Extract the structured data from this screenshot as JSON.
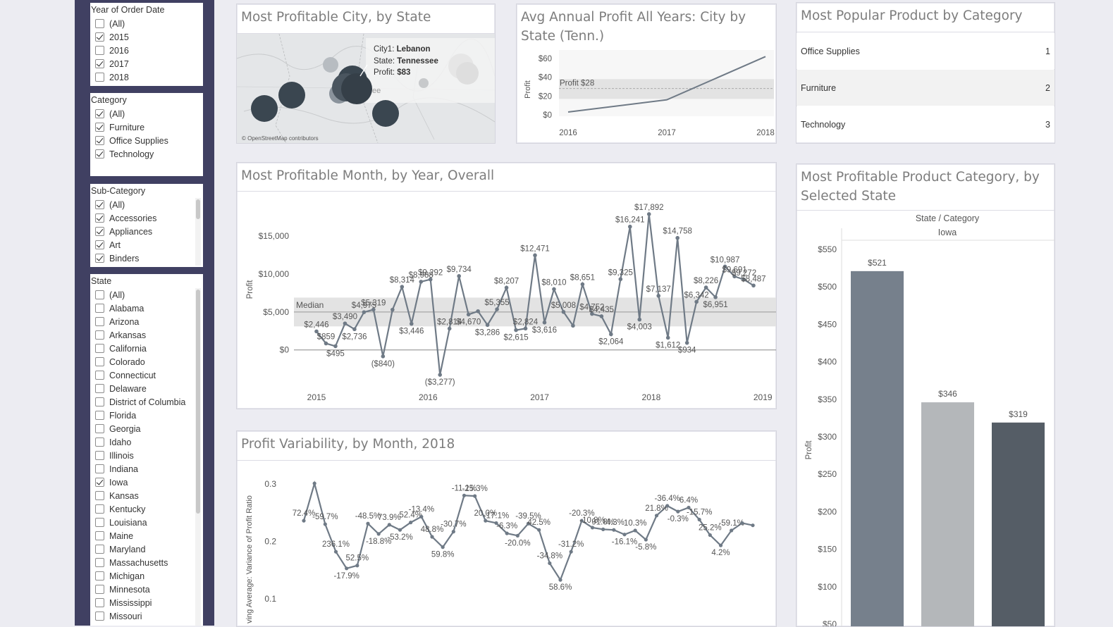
{
  "filters": {
    "year": {
      "title": "Year of Order Date",
      "options": [
        {
          "label": "(All)",
          "checked": false
        },
        {
          "label": "2015",
          "checked": true
        },
        {
          "label": "2016",
          "checked": false
        },
        {
          "label": "2017",
          "checked": true
        },
        {
          "label": "2018",
          "checked": false
        }
      ]
    },
    "category": {
      "title": "Category",
      "options": [
        {
          "label": "(All)",
          "checked": true
        },
        {
          "label": "Furniture",
          "checked": true
        },
        {
          "label": "Office Supplies",
          "checked": true
        },
        {
          "label": "Technology",
          "checked": true
        }
      ]
    },
    "subcategory": {
      "title": "Sub-Category",
      "options": [
        {
          "label": "(All)",
          "checked": true
        },
        {
          "label": "Accessories",
          "checked": true
        },
        {
          "label": "Appliances",
          "checked": true
        },
        {
          "label": "Art",
          "checked": true
        },
        {
          "label": "Binders",
          "checked": true
        }
      ]
    },
    "state": {
      "title": "State",
      "options": [
        {
          "label": "(All)",
          "checked": false
        },
        {
          "label": "Alabama",
          "checked": false
        },
        {
          "label": "Arizona",
          "checked": false
        },
        {
          "label": "Arkansas",
          "checked": false
        },
        {
          "label": "California",
          "checked": false
        },
        {
          "label": "Colorado",
          "checked": false
        },
        {
          "label": "Connecticut",
          "checked": false
        },
        {
          "label": "Delaware",
          "checked": false
        },
        {
          "label": "District of Columbia",
          "checked": false
        },
        {
          "label": "Florida",
          "checked": false
        },
        {
          "label": "Georgia",
          "checked": false
        },
        {
          "label": "Idaho",
          "checked": false
        },
        {
          "label": "Illinois",
          "checked": false
        },
        {
          "label": "Indiana",
          "checked": false
        },
        {
          "label": "Iowa",
          "checked": true
        },
        {
          "label": "Kansas",
          "checked": false
        },
        {
          "label": "Kentucky",
          "checked": false
        },
        {
          "label": "Louisiana",
          "checked": false
        },
        {
          "label": "Maine",
          "checked": false
        },
        {
          "label": "Maryland",
          "checked": false
        },
        {
          "label": "Massachusetts",
          "checked": false
        },
        {
          "label": "Michigan",
          "checked": false
        },
        {
          "label": "Minnesota",
          "checked": false
        },
        {
          "label": "Mississippi",
          "checked": false
        },
        {
          "label": "Missouri",
          "checked": false
        }
      ]
    }
  },
  "map_panel": {
    "title": "Most Profitable City, by State",
    "tooltip": {
      "city_label": "City1: ",
      "city": "Lebanon",
      "state_label": "State: ",
      "state": "Tennessee",
      "profit_label": "Profit: ",
      "profit": "$83"
    },
    "map_text": "ee",
    "attribution": "© OpenStreetMap contributors"
  },
  "avg_panel": {
    "title": "Avg Annual Profit All Years: City by State (Tenn.)"
  },
  "popular_panel": {
    "title": "Most Popular Product by Category",
    "rows": [
      {
        "name": "Office Supplies",
        "rank": "1"
      },
      {
        "name": "Furniture",
        "rank": "2"
      },
      {
        "name": "Technology",
        "rank": "3"
      }
    ]
  },
  "month_panel": {
    "title": "Most Profitable Month, by Year, Overall"
  },
  "variability_panel": {
    "title": "Profit Variability, by Month, 2018"
  },
  "category_panel": {
    "title": "Most Profitable Product Category, by Selected State"
  },
  "colors": {
    "line": "#6f7a86",
    "band": "#e3e3e3",
    "bar1": "#76808c",
    "bar2": "#b4b7ba",
    "bar3": "#555d66",
    "rail": "#404062"
  },
  "chart_data": [
    {
      "id": "avg",
      "type": "line",
      "x": [
        "2016",
        "2017",
        "2018"
      ],
      "values": [
        3,
        16,
        62
      ],
      "ylabel": "Profit",
      "yticks": [
        "$60",
        "$40",
        "$20",
        "$0"
      ],
      "ylim": [
        0,
        60
      ],
      "reference_band": [
        17,
        38
      ],
      "reference_line": {
        "label": "Profit $28",
        "value": 28
      }
    },
    {
      "id": "month",
      "type": "line",
      "ylabel": "Profit",
      "xticks": [
        "2015",
        "2016",
        "2017",
        "2018",
        "2019"
      ],
      "yticks": [
        "$15,000",
        "$10,000",
        "$5,000",
        "$0"
      ],
      "ylim": [
        -4200,
        19000
      ],
      "median_label": "Median",
      "median": 5000,
      "band": [
        3100,
        6900
      ],
      "values": [
        2446,
        859,
        495,
        3490,
        2736,
        4975,
        5319,
        -840,
        5300,
        8314,
        3446,
        8988,
        9292,
        -3277,
        2814,
        9734,
        4670,
        5100,
        3286,
        5355,
        8207,
        2615,
        2824,
        12471,
        3616,
        8010,
        5008,
        3200,
        8651,
        4752,
        4435,
        2064,
        9325,
        16241,
        4003,
        17892,
        7137,
        1612,
        14758,
        934,
        6342,
        8226,
        6951,
        10987,
        9691,
        9272,
        8487
      ],
      "labels": [
        "$2,446",
        "$859",
        "$495",
        "$3,490",
        "$2,736",
        "$4,975",
        "$5,319",
        "($840)",
        "",
        "$8,314",
        "$3,446",
        "$8,988",
        "$9,292",
        "($3,277)",
        "$2,814",
        "$9,734",
        "$4,670",
        "",
        "$3,286",
        "$5,355",
        "$8,207",
        "$2,615",
        "$2,824",
        "$12,471",
        "$3,616",
        "$8,010",
        "$5,008",
        "",
        "$8,651",
        "$4,752",
        "$4,435",
        "$2,064",
        "$9,325",
        "$16,241",
        "$4,003",
        "$17,892",
        "$7,137",
        "$1,612",
        "$14,758",
        "$934",
        "$6,342",
        "$8,226",
        "$6,951",
        "$10,987",
        "$9,691",
        "$9,272",
        "$8,487"
      ]
    },
    {
      "id": "variability",
      "type": "line",
      "ylabel": "ving Average: Variance of Profit Ratio",
      "yticks": [
        "0.3",
        "0.2",
        "0.1"
      ],
      "ylim": [
        0.08,
        0.325
      ],
      "values": [
        0.236,
        0.301,
        0.23,
        0.182,
        0.153,
        0.158,
        0.231,
        0.213,
        0.229,
        0.22,
        0.233,
        0.243,
        0.208,
        0.19,
        0.217,
        0.28,
        0.279,
        0.236,
        0.232,
        0.214,
        0.21,
        0.231,
        0.22,
        0.162,
        0.133,
        0.182,
        0.236,
        0.224,
        0.221,
        0.22,
        0.212,
        0.219,
        0.203,
        0.245,
        0.262,
        0.252,
        0.259,
        0.238,
        0.211,
        0.193,
        0.219,
        0.232,
        0.228
      ],
      "labels": [
        "72.4%",
        "",
        "-59.7%",
        "236.1%",
        "-17.9%",
        "52.5%",
        "-48.5%",
        "-18.8%",
        "73.9%",
        "-53.2%",
        "52.4%",
        "-13.4%",
        "48.8%",
        "59.8%",
        "-30.7%",
        "-11.1%",
        "-25.3%",
        "20.0%",
        "-17.1%",
        "-6.3%",
        "-20.0%",
        "-39.5%",
        "42.5%",
        "-34.8%",
        "58.6%",
        "-31.2%",
        "-20.3%",
        "-10.8%",
        "91.8%",
        "-4.3%",
        "-16.1%",
        "10.3%",
        "-5.8%",
        "21.8%",
        "-36.4%",
        "-0.3%",
        "6.4%",
        "-15.7%",
        "25.2%",
        "4.2%",
        "-59.1%",
        "",
        ""
      ]
    },
    {
      "id": "category",
      "type": "bar",
      "header": "State  /  Category",
      "group": "Iowa",
      "ylabel": "Profit",
      "categories": [
        "Office Supplies",
        "Furniture",
        "Technology"
      ],
      "values": [
        521,
        346,
        319
      ],
      "value_labels": [
        "$521",
        "$346",
        "$319"
      ],
      "yticks": [
        "$550",
        "$500",
        "$450",
        "$400",
        "$350",
        "$300",
        "$250",
        "$200",
        "$150",
        "$100",
        "$50"
      ],
      "ylim": [
        50,
        550
      ]
    }
  ]
}
